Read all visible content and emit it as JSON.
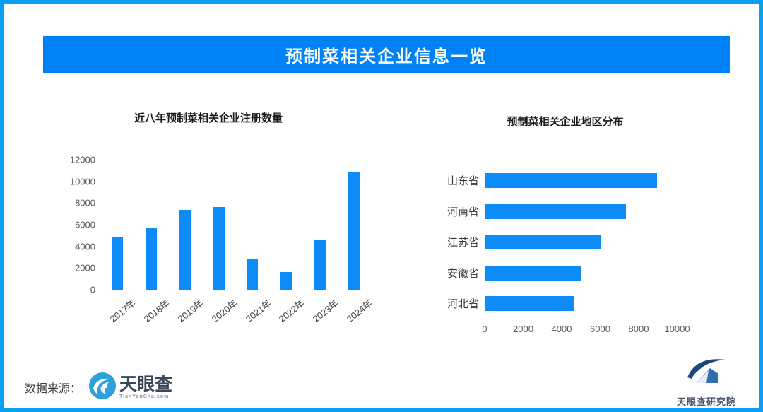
{
  "banner": {
    "title": "预制菜相关企业信息一览"
  },
  "chart_data": [
    {
      "type": "bar",
      "title": "近八年预制菜相关企业注册数量",
      "categories": [
        "2017年",
        "2018年",
        "2019年",
        "2020年",
        "2021年",
        "2022年",
        "2023年",
        "2024年"
      ],
      "values": [
        4900,
        5700,
        7350,
        7650,
        2900,
        1650,
        4600,
        10800
      ],
      "xlabel": "",
      "ylabel": "",
      "ylim": [
        0,
        12000
      ],
      "yticks": [
        0,
        2000,
        4000,
        6000,
        8000,
        10000,
        12000
      ],
      "grid": false,
      "legend": false,
      "bar_color": "#0d8bf8"
    },
    {
      "type": "bar",
      "orientation": "horizontal",
      "title": "预制菜相关企业地区分布",
      "categories": [
        "山东省",
        "河南省",
        "江苏省",
        "安徽省",
        "河北省"
      ],
      "values": [
        8900,
        7300,
        6000,
        5000,
        4600
      ],
      "xlabel": "",
      "ylabel": "",
      "xlim": [
        0,
        11000
      ],
      "xticks": [
        0,
        2000,
        4000,
        6000,
        8000,
        10000
      ],
      "grid": false,
      "legend": false,
      "bar_color": "#0d8bf8"
    }
  ],
  "footer": {
    "source_label": "数据来源：",
    "tianyancha_name": "天眼查",
    "tianyancha_sub": "TianYanCha.com",
    "research_institute": "天眼查研究院"
  },
  "colors": {
    "frame_border": "#0a9ff5",
    "banner_bg": "#0082f7",
    "bar_fill": "#0d8bf8",
    "axis_line": "#d9d9d9",
    "tick_text": "#595959",
    "tianyancha_logo_blue": "#2aa0dc",
    "institute_navy": "#1d4679",
    "institute_blue": "#2f6fb0"
  }
}
